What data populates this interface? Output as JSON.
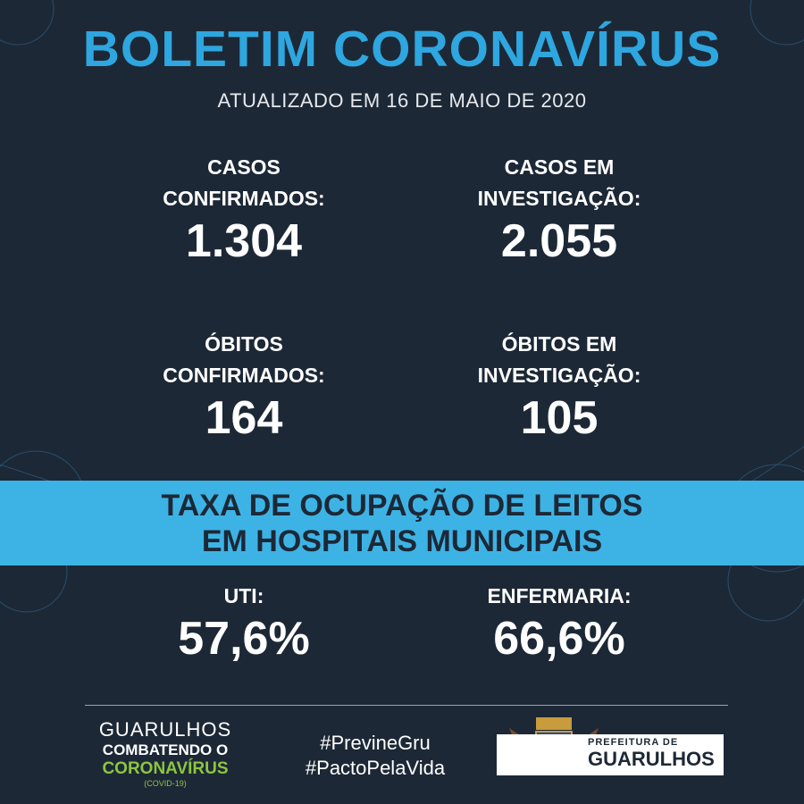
{
  "header": {
    "title": "BOLETIM CORONAVÍRUS",
    "subtitle": "ATUALIZADO EM 16 DE MAIO DE 2020"
  },
  "stats": [
    {
      "label_lines": [
        "CASOS",
        "CONFIRMADOS:"
      ],
      "value": "1.304"
    },
    {
      "label_lines": [
        "CASOS EM",
        "INVESTIGAÇÃO:"
      ],
      "value": "2.055"
    },
    {
      "label_lines": [
        "ÓBITOS",
        "CONFIRMADOS:"
      ],
      "value": "164"
    },
    {
      "label_lines": [
        "ÓBITOS EM",
        "INVESTIGAÇÃO:"
      ],
      "value": "105"
    }
  ],
  "banner": {
    "lines": [
      "TAXA DE OCUPAÇÃO DE LEITOS",
      "EM HOSPITAIS MUNICIPAIS"
    ]
  },
  "occupancy": [
    {
      "label": "UTI:",
      "value": "57,6%"
    },
    {
      "label": "ENFERMARIA:",
      "value": "66,6%"
    }
  ],
  "footer": {
    "campaign": [
      "GUARULHOS",
      "COMBATENDO O",
      "CORONAVÍRUS",
      "(COVID-19)"
    ],
    "hashtags": [
      "#PrevineGru",
      "#PactoPelaVida"
    ],
    "logo": [
      "PREFEITURA DE",
      "GUARULHOS"
    ]
  }
}
